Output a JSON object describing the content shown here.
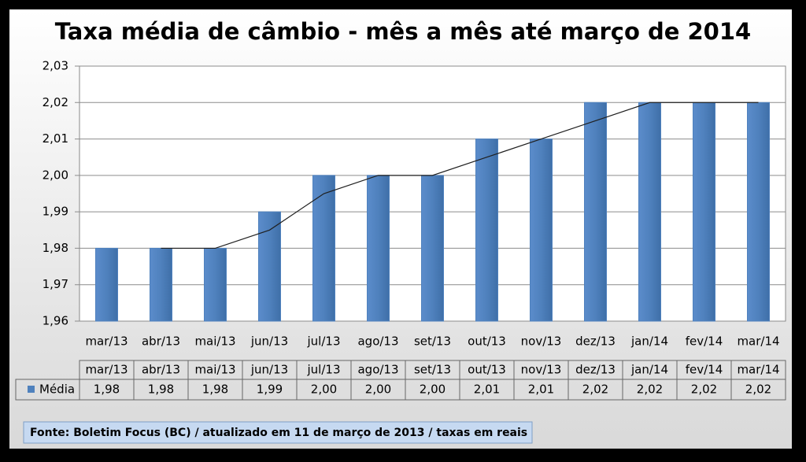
{
  "chart_data": {
    "type": "bar",
    "title": "Taxa média de câmbio - mês a mês até março de 2014",
    "categories": [
      "mar/13",
      "abr/13",
      "mai/13",
      "jun/13",
      "jul/13",
      "ago/13",
      "set/13",
      "out/13",
      "nov/13",
      "dez/13",
      "jan/14",
      "fev/14",
      "mar/14"
    ],
    "series": [
      {
        "name": "Média",
        "color": "#4f81bd",
        "values": [
          1.98,
          1.98,
          1.98,
          1.99,
          2.0,
          2.0,
          2.0,
          2.01,
          2.01,
          2.02,
          2.02,
          2.02,
          2.02
        ],
        "value_labels": [
          "1,98",
          "1,98",
          "1,98",
          "1,99",
          "2,00",
          "2,00",
          "2,00",
          "2,01",
          "2,01",
          "2,02",
          "2,02",
          "2,02",
          "2,02"
        ]
      }
    ],
    "trendline": [
      null,
      1.98,
      1.98,
      1.985,
      1.995,
      2.0,
      2.0,
      2.005,
      2.01,
      2.015,
      2.02,
      2.02,
      2.02
    ],
    "trendline_color": "#1f1f1f",
    "ylim": [
      1.96,
      2.03
    ],
    "yticks": [
      {
        "value": 1.96,
        "label": "1,96"
      },
      {
        "value": 1.97,
        "label": "1,97"
      },
      {
        "value": 1.98,
        "label": "1,98"
      },
      {
        "value": 1.99,
        "label": "1,99"
      },
      {
        "value": 2.0,
        "label": "2,00"
      },
      {
        "value": 2.01,
        "label": "2,01"
      },
      {
        "value": 2.02,
        "label": "2,02"
      },
      {
        "value": 2.03,
        "label": "2,03"
      }
    ],
    "grid": true,
    "source": "Fonte: Boletim Focus (BC) / atualizado  em 11 de março de 2013 / taxas em reais"
  }
}
